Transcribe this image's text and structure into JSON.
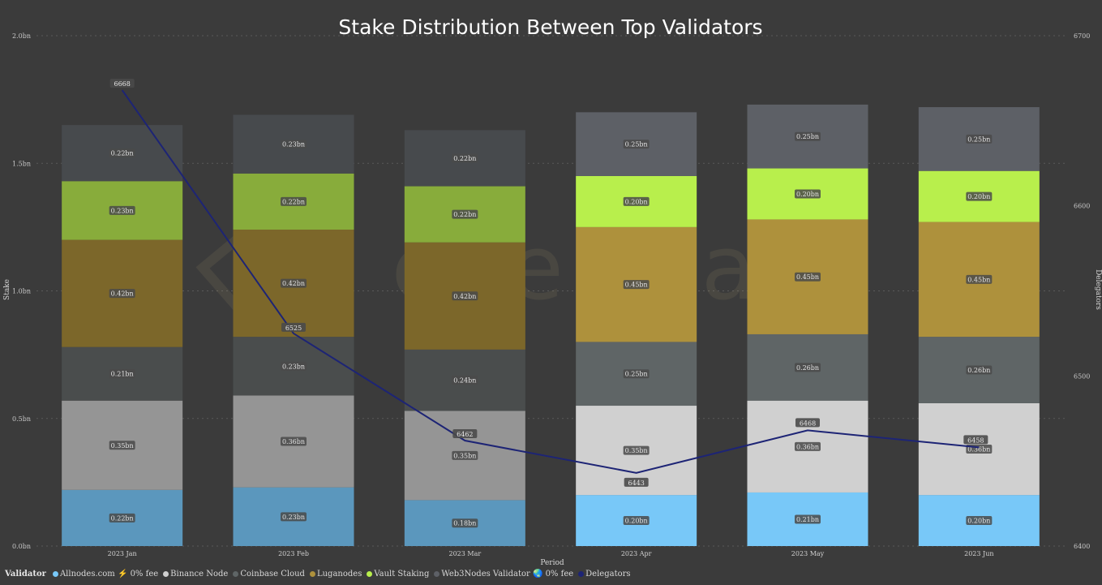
{
  "chart_data": {
    "type": "bar",
    "stacked": true,
    "title": "Stake Distribution Between Top Validators",
    "xlabel": "Period",
    "ylabel": "Stake",
    "y2label": "Delegators",
    "ylim": [
      0,
      2.0
    ],
    "y2lim": [
      6400,
      6700
    ],
    "yticks": [
      "0.0bn",
      "0.5bn",
      "1.0bn",
      "1.5bn",
      "2.0bn"
    ],
    "y2ticks": [
      "6400",
      "6500",
      "6600",
      "6700"
    ],
    "grid": true,
    "legend_position": "bottom-left",
    "watermark": "everstake",
    "categories": [
      "2023 Jan",
      "2023 Feb",
      "2023 Mar",
      "2023 Apr",
      "2023 May",
      "2023 Jun"
    ],
    "series": [
      {
        "name": "Allnodes.com ⚡ 0% fee",
        "colors": [
          "#5b97bd",
          "#5b97bd",
          "#5b97bd",
          "#78c8f8",
          "#78c8f8",
          "#78c8f8"
        ],
        "values": [
          0.22,
          0.23,
          0.18,
          0.2,
          0.21,
          0.2
        ],
        "labels": [
          "0.22bn",
          "0.23bn",
          "0.18bn",
          "0.20bn",
          "0.21bn",
          "0.20bn"
        ]
      },
      {
        "name": "Binance Node",
        "colors": [
          "#959595",
          "#959595",
          "#959595",
          "#d0d0d0",
          "#d0d0d0",
          "#d0d0d0"
        ],
        "values": [
          0.35,
          0.36,
          0.35,
          0.35,
          0.36,
          0.36
        ],
        "labels": [
          "0.35bn",
          "0.36bn",
          "0.35bn",
          "0.35bn",
          "0.36bn",
          "0.36bn"
        ]
      },
      {
        "name": "Coinbase Cloud",
        "colors": [
          "#4a4d4d",
          "#4a4d4d",
          "#4a4d4d",
          "#5f6566",
          "#5f6566",
          "#5f6566"
        ],
        "values": [
          0.21,
          0.23,
          0.24,
          0.25,
          0.26,
          0.26
        ],
        "labels": [
          "0.21bn",
          "0.23bn",
          "0.24bn",
          "0.25bn",
          "0.26bn",
          "0.26bn"
        ]
      },
      {
        "name": "Luganodes",
        "colors": [
          "#7c672a",
          "#7c672a",
          "#7c672a",
          "#ae913c",
          "#ae913c",
          "#ae913c"
        ],
        "values": [
          0.42,
          0.42,
          0.42,
          0.45,
          0.45,
          0.45
        ],
        "labels": [
          "0.42bn",
          "0.42bn",
          "0.42bn",
          "0.45bn",
          "0.45bn",
          "0.45bn"
        ]
      },
      {
        "name": "Vault Staking",
        "colors": [
          "#88ac3b",
          "#88ac3b",
          "#88ac3b",
          "#b8ef4c",
          "#b8ef4c",
          "#b8ef4c"
        ],
        "values": [
          0.23,
          0.22,
          0.22,
          0.2,
          0.2,
          0.2
        ],
        "labels": [
          "0.23bn",
          "0.22bn",
          "0.22bn",
          "0.20bn",
          "0.20bn",
          "0.20bn"
        ]
      },
      {
        "name": "Web3Nodes Validator 🌏 0% fee",
        "colors": [
          "#474a4d",
          "#474a4d",
          "#474a4d",
          "#5d6066",
          "#5d6066",
          "#5d6066"
        ],
        "values": [
          0.22,
          0.23,
          0.22,
          0.25,
          0.25,
          0.25
        ],
        "labels": [
          "0.22bn",
          "0.23bn",
          "0.22bn",
          "0.25bn",
          "0.25bn",
          "0.25bn"
        ]
      }
    ],
    "line_series": {
      "name": "Delegators",
      "axis": "right",
      "color": "#1d2475",
      "values": [
        6668,
        6525,
        6462,
        6443,
        6468,
        6458
      ],
      "labels": [
        "6668",
        "6525",
        "6462",
        "6443",
        "6468",
        "6458"
      ]
    }
  },
  "legend": {
    "title": "Validator",
    "items": [
      {
        "label": "Allnodes.com ⚡ 0% fee",
        "color": "#78c8f8"
      },
      {
        "label": "Binance Node",
        "color": "#d0d0d0"
      },
      {
        "label": "Coinbase Cloud",
        "color": "#5f6566"
      },
      {
        "label": "Luganodes",
        "color": "#ae913c"
      },
      {
        "label": "Vault Staking",
        "color": "#b8ef4c"
      },
      {
        "label": "Web3Nodes Validator 🌏 0% fee",
        "color": "#5d6066"
      },
      {
        "label": "Delegators",
        "color": "#1d2475"
      }
    ]
  }
}
